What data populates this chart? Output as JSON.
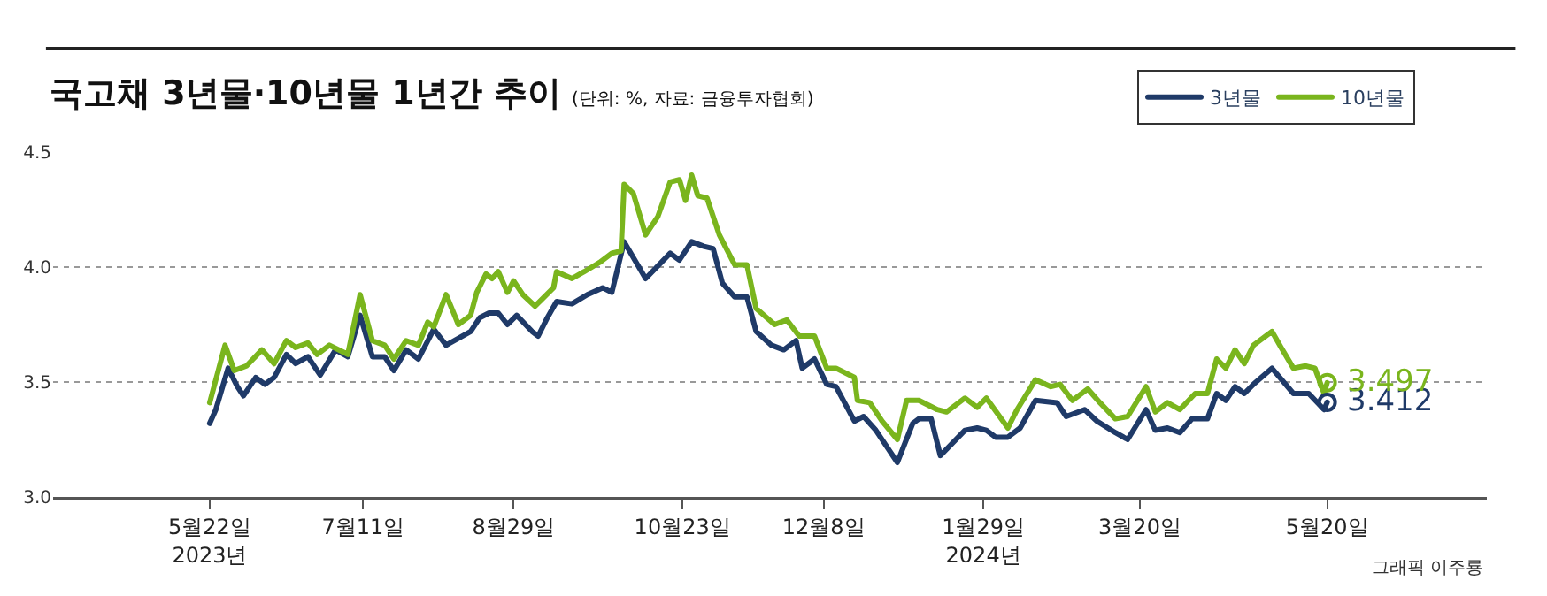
{
  "chart_data": {
    "type": "line",
    "title": "국고채 3년물·10년물 1년간 추이",
    "subtitle": "(단위: %, 자료: 금융투자협회)",
    "annotations": [
      "그래픽 이주룡",
      {
        "text": "3.412",
        "x": "2024-05-20",
        "y": 3.412
      },
      {
        "text": "3.497",
        "x": "2024-05-20",
        "y": 3.497
      }
    ],
    "xlim": [
      "2023-04-01",
      "2024-07-11"
    ],
    "xticks": [
      {
        "value": "2023-05-22",
        "label": "5월22일\n2023년"
      },
      {
        "value": "2023-07-11",
        "label": "7월11일"
      },
      {
        "value": "2023-08-29",
        "label": "8월29일"
      },
      {
        "value": "2023-10-23",
        "label": "10월23일"
      },
      {
        "value": "2023-12-08",
        "label": "12월8일"
      },
      {
        "value": "2024-01-29",
        "label": "1월29일\n2024년"
      },
      {
        "value": "2024-03-20",
        "label": "3월20일"
      },
      {
        "value": "2024-05-20",
        "label": "5월20일"
      }
    ],
    "ylim": [
      3.0,
      4.5
    ],
    "yticks": [
      {
        "value": 3.0,
        "label": "3.0"
      },
      {
        "value": 3.5,
        "label": "3.5"
      },
      {
        "value": 4.0,
        "label": "4.0"
      },
      {
        "value": 4.5,
        "label": "4.5"
      }
    ],
    "grid": "y",
    "legend": "top right",
    "marker": "none",
    "line_style": "solid",
    "series": [
      {
        "name": "3년물",
        "color": "#1f3a68",
        "x": [
          "2023-05-22",
          "2023-05-24",
          "2023-05-28",
          "2023-05-31",
          "2023-06-02",
          "2023-06-06",
          "2023-06-09",
          "2023-06-12",
          "2023-06-16",
          "2023-06-19",
          "2023-06-23",
          "2023-06-27",
          "2023-07-02",
          "2023-07-06",
          "2023-07-10",
          "2023-07-14",
          "2023-07-18",
          "2023-07-21",
          "2023-07-25",
          "2023-07-29",
          "2023-08-03",
          "2023-08-07",
          "2023-08-15",
          "2023-08-18",
          "2023-08-21",
          "2023-08-24",
          "2023-08-27",
          "2023-08-30",
          "2023-09-04",
          "2023-09-06",
          "2023-09-09",
          "2023-09-12",
          "2023-09-17",
          "2023-09-22",
          "2023-09-27",
          "2023-09-30",
          "2023-10-04",
          "2023-10-11",
          "2023-10-19",
          "2023-10-22",
          "2023-10-26",
          "2023-10-30",
          "2023-11-02",
          "2023-11-05",
          "2023-11-09",
          "2023-11-13",
          "2023-11-16",
          "2023-11-21",
          "2023-11-25",
          "2023-11-29",
          "2023-12-01",
          "2023-12-05",
          "2023-12-09",
          "2023-12-12",
          "2023-12-18",
          "2023-12-21",
          "2023-12-25",
          "2024-01-01",
          "2024-01-06",
          "2024-01-08",
          "2024-01-12",
          "2024-01-15",
          "2024-01-23",
          "2024-01-27",
          "2024-01-30",
          "2024-02-02",
          "2024-02-06",
          "2024-02-10",
          "2024-02-15",
          "2024-02-22",
          "2024-02-25",
          "2024-03-02",
          "2024-03-06",
          "2024-03-12",
          "2024-03-16",
          "2024-03-22",
          "2024-03-25",
          "2024-03-29",
          "2024-04-02",
          "2024-04-06",
          "2024-04-11",
          "2024-04-14",
          "2024-04-17",
          "2024-04-20",
          "2024-04-23",
          "2024-04-26",
          "2024-05-02",
          "2024-05-09",
          "2024-05-14",
          "2024-05-19",
          "2024-05-20"
        ],
        "values": [
          3.32,
          3.38,
          3.56,
          3.48,
          3.44,
          3.52,
          3.49,
          3.52,
          3.62,
          3.58,
          3.61,
          3.53,
          3.64,
          3.61,
          3.79,
          3.61,
          3.61,
          3.55,
          3.64,
          3.6,
          3.73,
          3.66,
          3.72,
          3.78,
          3.8,
          3.8,
          3.75,
          3.79,
          3.72,
          3.7,
          3.78,
          3.85,
          3.84,
          3.88,
          3.91,
          3.89,
          4.11,
          3.95,
          4.06,
          4.03,
          4.11,
          4.09,
          4.08,
          3.93,
          3.87,
          3.87,
          3.72,
          3.66,
          3.64,
          3.68,
          3.56,
          3.6,
          3.49,
          3.48,
          3.33,
          3.35,
          3.29,
          3.15,
          3.32,
          3.34,
          3.34,
          3.18,
          3.29,
          3.3,
          3.29,
          3.26,
          3.26,
          3.3,
          3.42,
          3.41,
          3.35,
          3.38,
          3.33,
          3.28,
          3.25,
          3.38,
          3.29,
          3.3,
          3.28,
          3.34,
          3.34,
          3.45,
          3.42,
          3.48,
          3.45,
          3.49,
          3.56,
          3.45,
          3.45,
          3.38,
          3.412
        ]
      },
      {
        "name": "10년물",
        "color": "#7ab51d",
        "x": [
          "2023-05-22",
          "2023-05-27",
          "2023-05-30",
          "2023-06-03",
          "2023-06-08",
          "2023-06-12",
          "2023-06-16",
          "2023-06-19",
          "2023-06-23",
          "2023-06-26",
          "2023-06-30",
          "2023-07-06",
          "2023-07-10",
          "2023-07-14",
          "2023-07-18",
          "2023-07-21",
          "2023-07-25",
          "2023-07-29",
          "2023-08-01",
          "2023-08-03",
          "2023-08-07",
          "2023-08-11",
          "2023-08-15",
          "2023-08-17",
          "2023-08-20",
          "2023-08-22",
          "2023-08-24",
          "2023-08-27",
          "2023-08-29",
          "2023-09-01",
          "2023-09-05",
          "2023-09-11",
          "2023-09-12",
          "2023-09-17",
          "2023-09-21",
          "2023-09-26",
          "2023-09-30",
          "2023-10-03",
          "2023-10-04",
          "2023-10-07",
          "2023-10-11",
          "2023-10-15",
          "2023-10-19",
          "2023-10-22",
          "2023-10-24",
          "2023-10-26",
          "2023-10-28",
          "2023-10-31",
          "2023-11-04",
          "2023-11-09",
          "2023-11-13",
          "2023-11-16",
          "2023-11-22",
          "2023-11-26",
          "2023-11-30",
          "2023-12-05",
          "2023-12-09",
          "2023-12-12",
          "2023-12-18",
          "2023-12-19",
          "2023-12-23",
          "2023-12-27",
          "2024-01-01",
          "2024-01-04",
          "2024-01-08",
          "2024-01-14",
          "2024-01-17",
          "2024-01-23",
          "2024-01-27",
          "2024-01-30",
          "2024-02-06",
          "2024-02-09",
          "2024-02-15",
          "2024-02-20",
          "2024-02-23",
          "2024-02-27",
          "2024-03-03",
          "2024-03-07",
          "2024-03-12",
          "2024-03-16",
          "2024-03-22",
          "2024-03-25",
          "2024-03-29",
          "2024-04-02",
          "2024-04-07",
          "2024-04-11",
          "2024-04-14",
          "2024-04-17",
          "2024-04-20",
          "2024-04-23",
          "2024-04-26",
          "2024-05-02",
          "2024-05-05",
          "2024-05-09",
          "2024-05-13",
          "2024-05-16",
          "2024-05-19",
          "2024-05-20"
        ],
        "values": [
          3.41,
          3.66,
          3.55,
          3.57,
          3.64,
          3.58,
          3.68,
          3.65,
          3.67,
          3.62,
          3.66,
          3.62,
          3.88,
          3.68,
          3.66,
          3.6,
          3.68,
          3.66,
          3.76,
          3.74,
          3.88,
          3.75,
          3.79,
          3.89,
          3.97,
          3.95,
          3.98,
          3.89,
          3.94,
          3.88,
          3.83,
          3.91,
          3.98,
          3.95,
          3.98,
          4.02,
          4.06,
          4.07,
          4.36,
          4.32,
          4.14,
          4.22,
          4.37,
          4.38,
          4.29,
          4.4,
          4.31,
          4.3,
          4.14,
          4.01,
          4.01,
          3.82,
          3.75,
          3.77,
          3.7,
          3.7,
          3.56,
          3.56,
          3.52,
          3.42,
          3.41,
          3.33,
          3.25,
          3.42,
          3.42,
          3.38,
          3.37,
          3.43,
          3.39,
          3.43,
          3.3,
          3.38,
          3.51,
          3.48,
          3.49,
          3.42,
          3.47,
          3.41,
          3.34,
          3.35,
          3.48,
          3.37,
          3.41,
          3.38,
          3.45,
          3.45,
          3.6,
          3.56,
          3.64,
          3.58,
          3.66,
          3.72,
          3.65,
          3.56,
          3.57,
          3.56,
          3.45,
          3.497
        ]
      }
    ]
  }
}
